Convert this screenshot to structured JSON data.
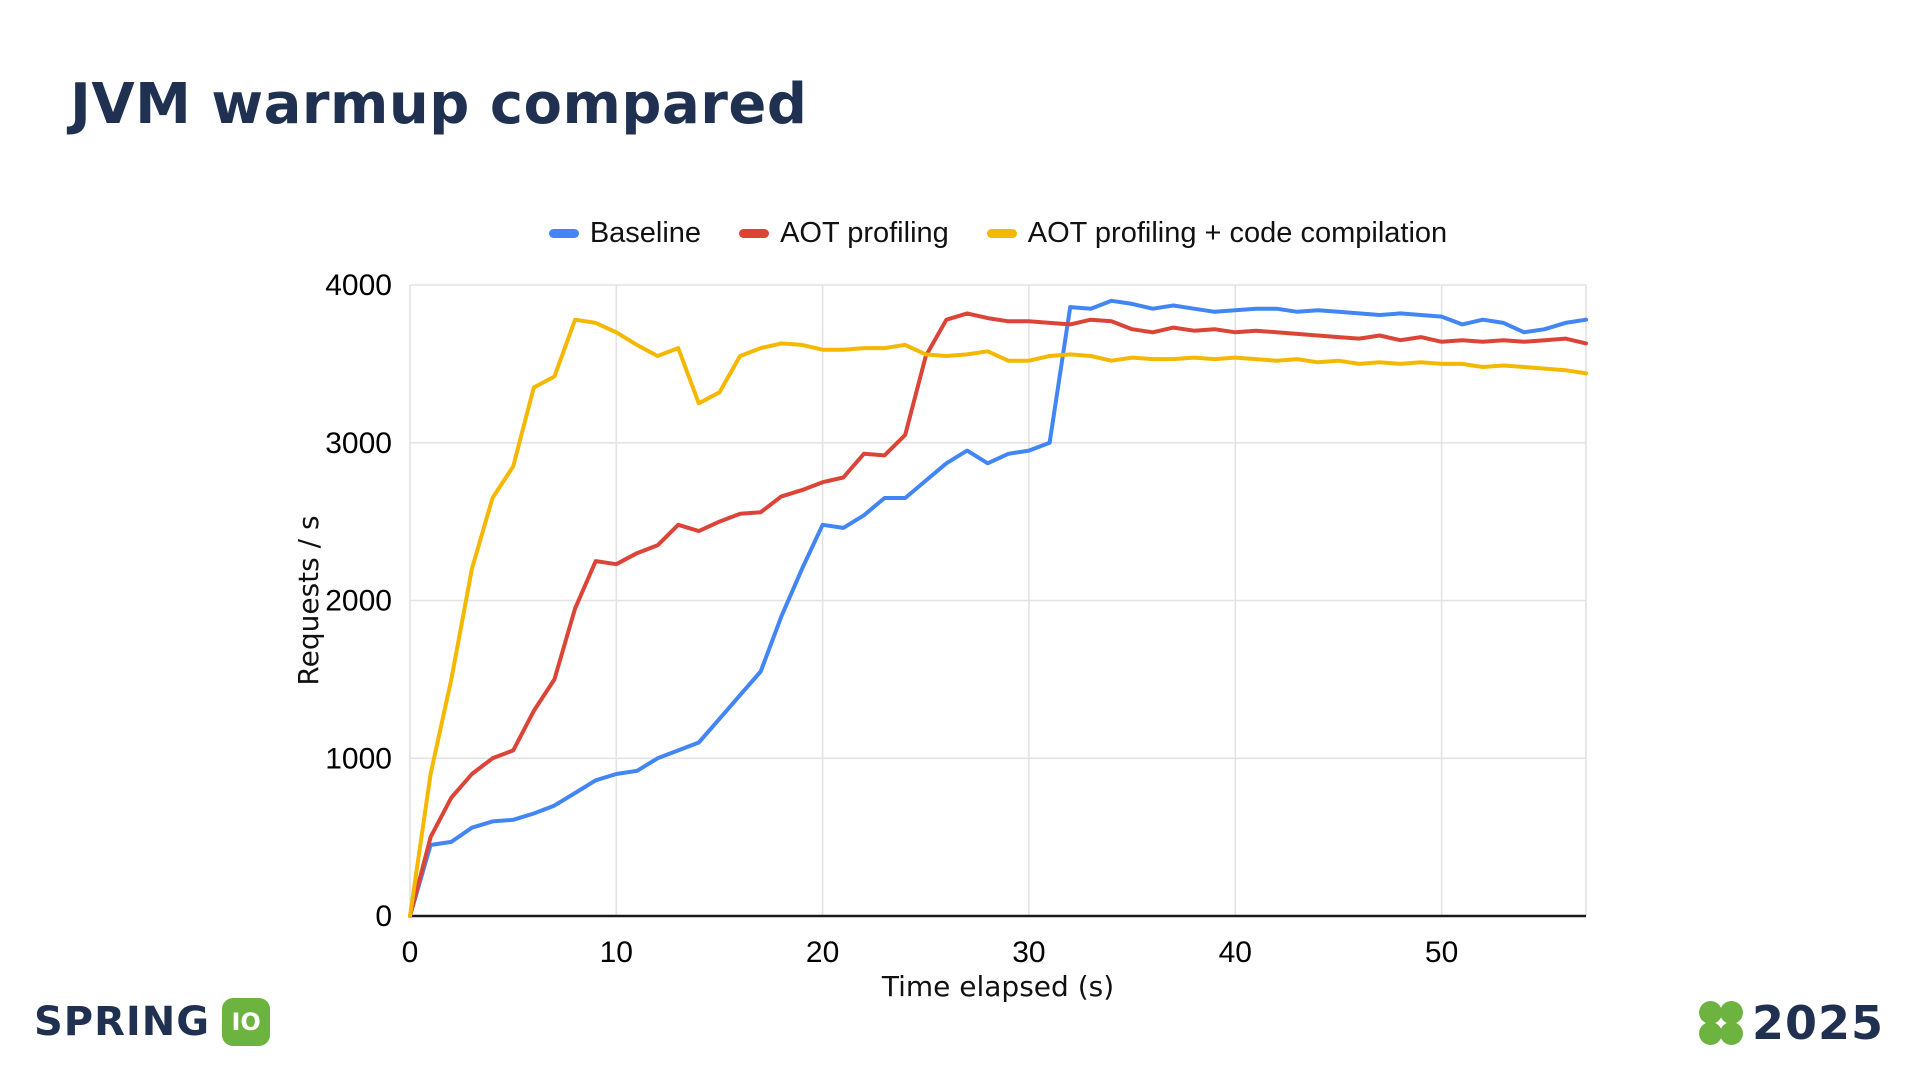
{
  "slide": {
    "title": "JVM warmup compared"
  },
  "footer": {
    "spring_text": "SPRING",
    "spring_badge": "IO",
    "year": "2025"
  },
  "colors": {
    "title": "#1f3050",
    "baseline": "#4285F4",
    "aot_profiling": "#DB4437",
    "aot_profiling_code": "#F5B800",
    "grid": "#E3E3E3",
    "axis": "#1a1a1a",
    "spring_green": "#6DB33F"
  },
  "chart_data": {
    "type": "line",
    "title": "",
    "xlabel": "Time elapsed (s)",
    "ylabel": "Requests / s",
    "xlim": [
      0,
      57
    ],
    "ylim": [
      0,
      4000
    ],
    "x_ticks": [
      0,
      10,
      20,
      30,
      40,
      50
    ],
    "y_ticks": [
      0,
      1000,
      2000,
      3000,
      4000
    ],
    "grid": true,
    "legend_position": "top",
    "x": [
      0,
      1,
      2,
      3,
      4,
      5,
      6,
      7,
      8,
      9,
      10,
      11,
      12,
      13,
      14,
      15,
      16,
      17,
      18,
      19,
      20,
      21,
      22,
      23,
      24,
      25,
      26,
      27,
      28,
      29,
      30,
      31,
      32,
      33,
      34,
      35,
      36,
      37,
      38,
      39,
      40,
      41,
      42,
      43,
      44,
      45,
      46,
      47,
      48,
      49,
      50,
      51,
      52,
      53,
      54,
      55,
      56,
      57
    ],
    "series": [
      {
        "name": "Baseline",
        "color": "#4285F4",
        "values": [
          0,
          450,
          470,
          560,
          600,
          610,
          650,
          700,
          780,
          860,
          900,
          920,
          1000,
          1050,
          1100,
          1250,
          1400,
          1550,
          1900,
          2200,
          2480,
          2460,
          2540,
          2650,
          2650,
          2760,
          2870,
          2950,
          2870,
          2930,
          2950,
          3000,
          3860,
          3850,
          3900,
          3880,
          3850,
          3870,
          3850,
          3830,
          3840,
          3850,
          3850,
          3830,
          3840,
          3830,
          3820,
          3810,
          3820,
          3810,
          3800,
          3750,
          3780,
          3760,
          3700,
          3720,
          3760,
          3780
        ]
      },
      {
        "name": "AOT profiling",
        "color": "#DB4437",
        "values": [
          0,
          500,
          750,
          900,
          1000,
          1050,
          1300,
          1500,
          1950,
          2250,
          2230,
          2300,
          2350,
          2480,
          2440,
          2500,
          2550,
          2560,
          2660,
          2700,
          2750,
          2780,
          2930,
          2920,
          3050,
          3550,
          3780,
          3820,
          3790,
          3770,
          3770,
          3760,
          3750,
          3780,
          3770,
          3720,
          3700,
          3730,
          3710,
          3720,
          3700,
          3710,
          3700,
          3690,
          3680,
          3670,
          3660,
          3680,
          3650,
          3670,
          3640,
          3650,
          3640,
          3650,
          3640,
          3650,
          3660,
          3630
        ]
      },
      {
        "name": "AOT profiling + code compilation",
        "color": "#F5B800",
        "values": [
          0,
          900,
          1500,
          2200,
          2650,
          2850,
          3350,
          3420,
          3780,
          3760,
          3700,
          3620,
          3550,
          3600,
          3250,
          3320,
          3550,
          3600,
          3630,
          3620,
          3590,
          3590,
          3600,
          3600,
          3620,
          3560,
          3550,
          3560,
          3580,
          3520,
          3520,
          3550,
          3560,
          3550,
          3520,
          3540,
          3530,
          3530,
          3540,
          3530,
          3540,
          3530,
          3520,
          3530,
          3510,
          3520,
          3500,
          3510,
          3500,
          3510,
          3500,
          3500,
          3480,
          3490,
          3480,
          3470,
          3460,
          3440
        ]
      }
    ]
  }
}
